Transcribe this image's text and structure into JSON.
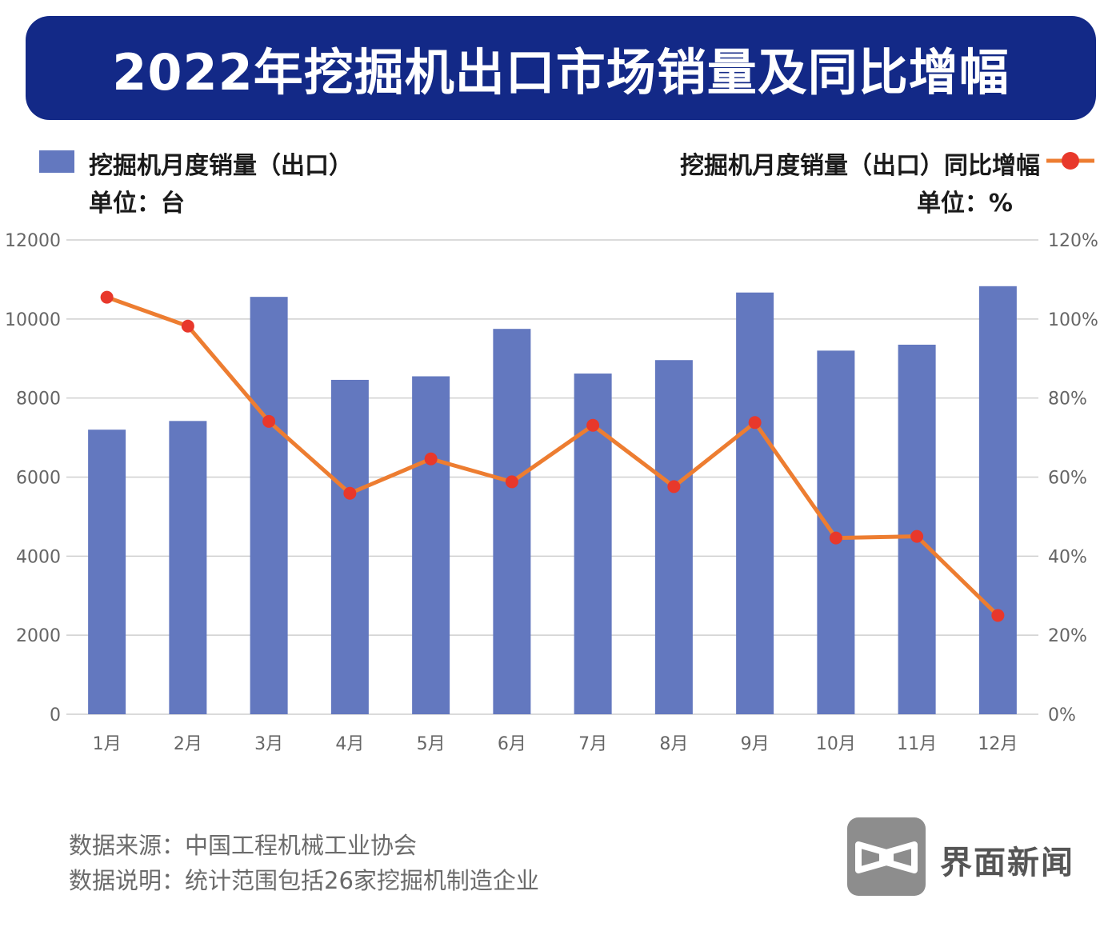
{
  "title": "2022年挖掘机出口市场销量及同比增幅",
  "legend": {
    "bar_label": "挖掘机月度销量（出口）",
    "bar_unit": "单位：台",
    "line_label": "挖掘机月度销量（出口）同比增幅",
    "line_unit": "单位：%"
  },
  "colors": {
    "banner": "#132987",
    "bar": "#6378bf",
    "line": "#ed7d31",
    "marker": "#e8382b"
  },
  "chart_data": {
    "type": "bar+line",
    "categories": [
      "1月",
      "2月",
      "3月",
      "4月",
      "5月",
      "6月",
      "7月",
      "8月",
      "9月",
      "10月",
      "11月",
      "12月"
    ],
    "series": [
      {
        "name": "挖掘机月度销量（出口）",
        "type": "bar",
        "axis": "left",
        "values": [
          7200,
          7420,
          10560,
          8460,
          8550,
          9750,
          8620,
          8960,
          10670,
          9200,
          9350,
          10830
        ]
      },
      {
        "name": "挖掘机月度销量（出口）同比增幅",
        "type": "line",
        "axis": "right",
        "values": [
          105.5,
          98.2,
          74.1,
          55.9,
          64.6,
          58.8,
          73.1,
          57.6,
          73.8,
          44.6,
          45.0,
          25.0
        ]
      }
    ],
    "left_axis": {
      "ylim": [
        0,
        12000
      ],
      "ticks": [
        "0",
        "2000",
        "4000",
        "6000",
        "8000",
        "10000",
        "12000"
      ]
    },
    "right_axis": {
      "ylim": [
        0,
        120
      ],
      "ticks": [
        "0%",
        "20%",
        "40%",
        "60%",
        "80%",
        "100%",
        "120%"
      ]
    },
    "grid": true
  },
  "footer": {
    "source": "数据来源：中国工程机械工业协会",
    "note": "数据说明：统计范围包括26家挖掘机制造企业"
  },
  "logo": {
    "text": "界面新闻"
  }
}
